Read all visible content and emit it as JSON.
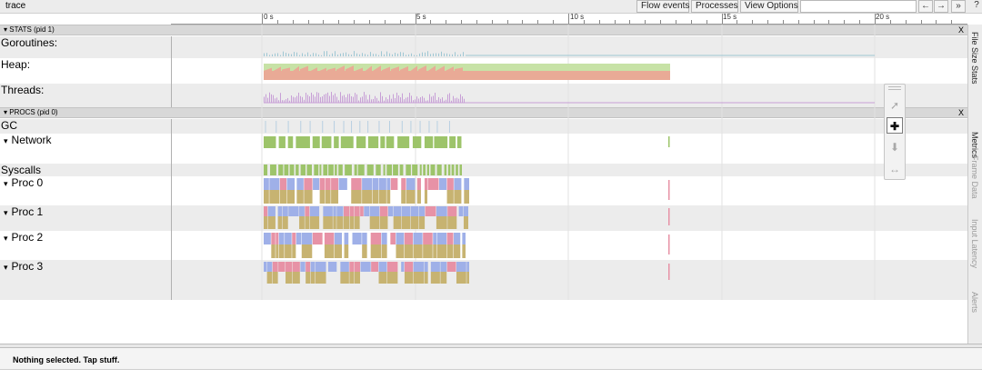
{
  "app": {
    "title": "trace"
  },
  "toolbar": {
    "flow_events": "Flow events",
    "processes": "Processes",
    "view_options": "View Options",
    "nav_back": "←",
    "nav_forward": "→",
    "nav_more": "»",
    "help": "?"
  },
  "ruler": {
    "labels": [
      "0 s",
      "5 s",
      "10 s",
      "15 s",
      "20 s"
    ]
  },
  "stats_section": {
    "header": "STATS (pid 1)",
    "close": "X",
    "rows": [
      {
        "label": "Goroutines:"
      },
      {
        "label": "Heap:"
      },
      {
        "label": "Threads:"
      }
    ]
  },
  "procs_section": {
    "header": "PROCS (pid 0)",
    "close": "X",
    "rows": [
      {
        "label": "GC"
      },
      {
        "label": "Network"
      },
      {
        "label": "Syscalls"
      },
      {
        "label": "Proc 0"
      },
      {
        "label": "Proc 1"
      },
      {
        "label": "Proc 2"
      },
      {
        "label": "Proc 3"
      }
    ]
  },
  "side_tabs": [
    "File Size Stats",
    "Metrics",
    "Frame Data",
    "Input Latency",
    "Alerts"
  ],
  "tools": [
    "select-icon",
    "pan-icon",
    "zoom-icon",
    "timing-icon"
  ],
  "status": {
    "text": "Nothing selected. Tap stuff."
  },
  "colors": {
    "heap_allocated": "#e9aa96",
    "heap_next_gc": "#c7e2a6",
    "goroutines": "#9fc7d4",
    "threads": "#c79fd6",
    "network": "#9dc46a",
    "proc_blue": "#9fb0e8",
    "proc_pink": "#e792a6",
    "proc_gold": "#c7b371",
    "gc_tick": "#b7cfe1"
  }
}
